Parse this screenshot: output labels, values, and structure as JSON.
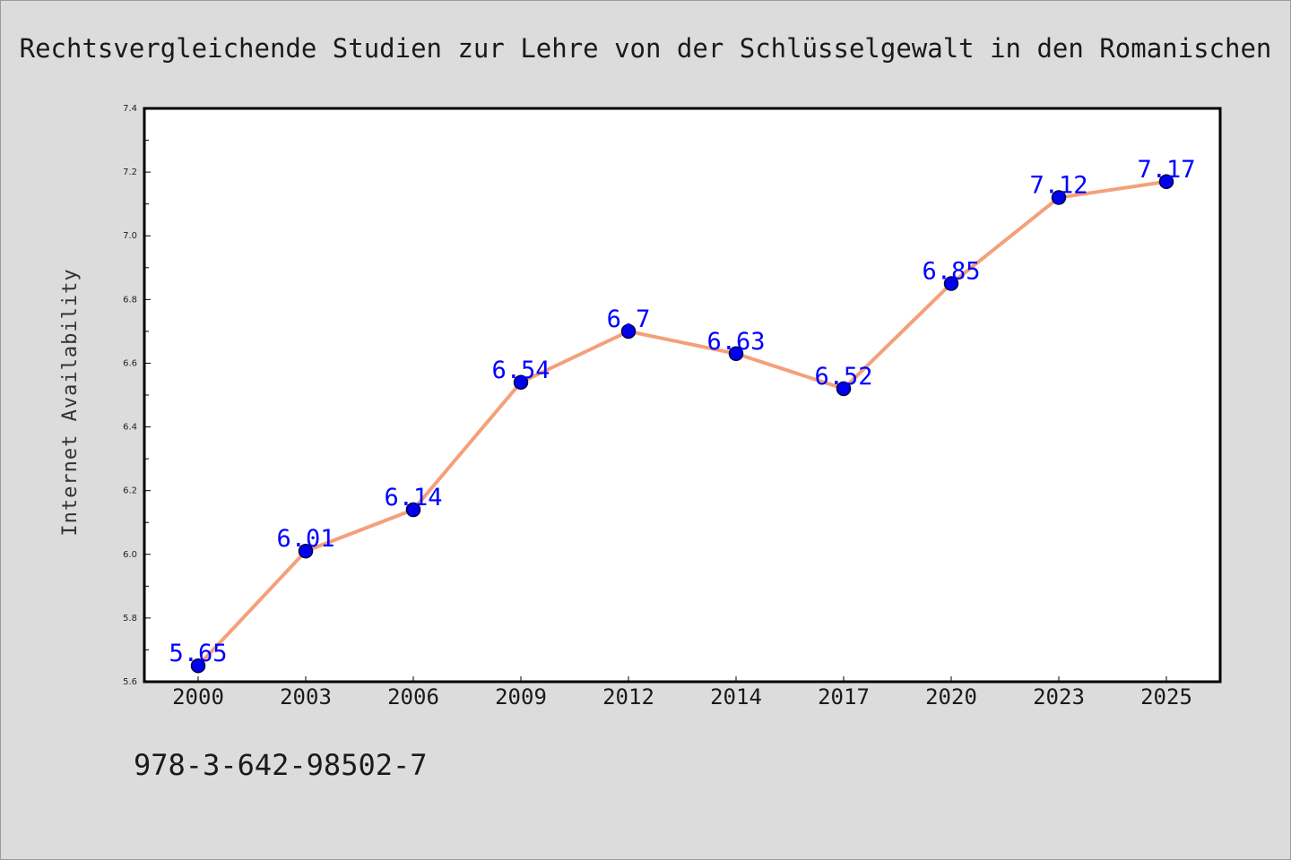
{
  "caption": "978-3-642-98502-7",
  "chart_data": {
    "type": "line",
    "title": "Rechtsvergleichende Studien zur Lehre von der Schlüsselgewalt in den Romanischen",
    "xlabel": "",
    "ylabel": "Internet Availability",
    "categories": [
      "2000",
      "2003",
      "2006",
      "2009",
      "2012",
      "2014",
      "2017",
      "2020",
      "2023",
      "2025"
    ],
    "series": [
      {
        "values": [
          5.65,
          6.01,
          6.14,
          6.54,
          6.7,
          6.63,
          6.52,
          6.85,
          7.12,
          7.17
        ]
      }
    ],
    "data_labels": [
      "5.65",
      "6.01",
      "6.14",
      "6.54",
      "6.7",
      "6.63",
      "6.52",
      "6.85",
      "7.12",
      "7.17"
    ],
    "ylim": [
      5.6,
      7.4
    ],
    "yticks": [
      "5.6",
      "5.8",
      "6.0",
      "6.2",
      "6.4",
      "6.6",
      "6.8",
      "7.0",
      "7.2",
      "7.4"
    ],
    "grid": false,
    "legend": "none",
    "colors": {
      "line": "#f4a07a",
      "marker": "#0000ee",
      "marker_edge": "#000044",
      "data_label": "#0000ff",
      "plot_background": "#ffffff",
      "page_background": "#dcdcdc"
    }
  }
}
